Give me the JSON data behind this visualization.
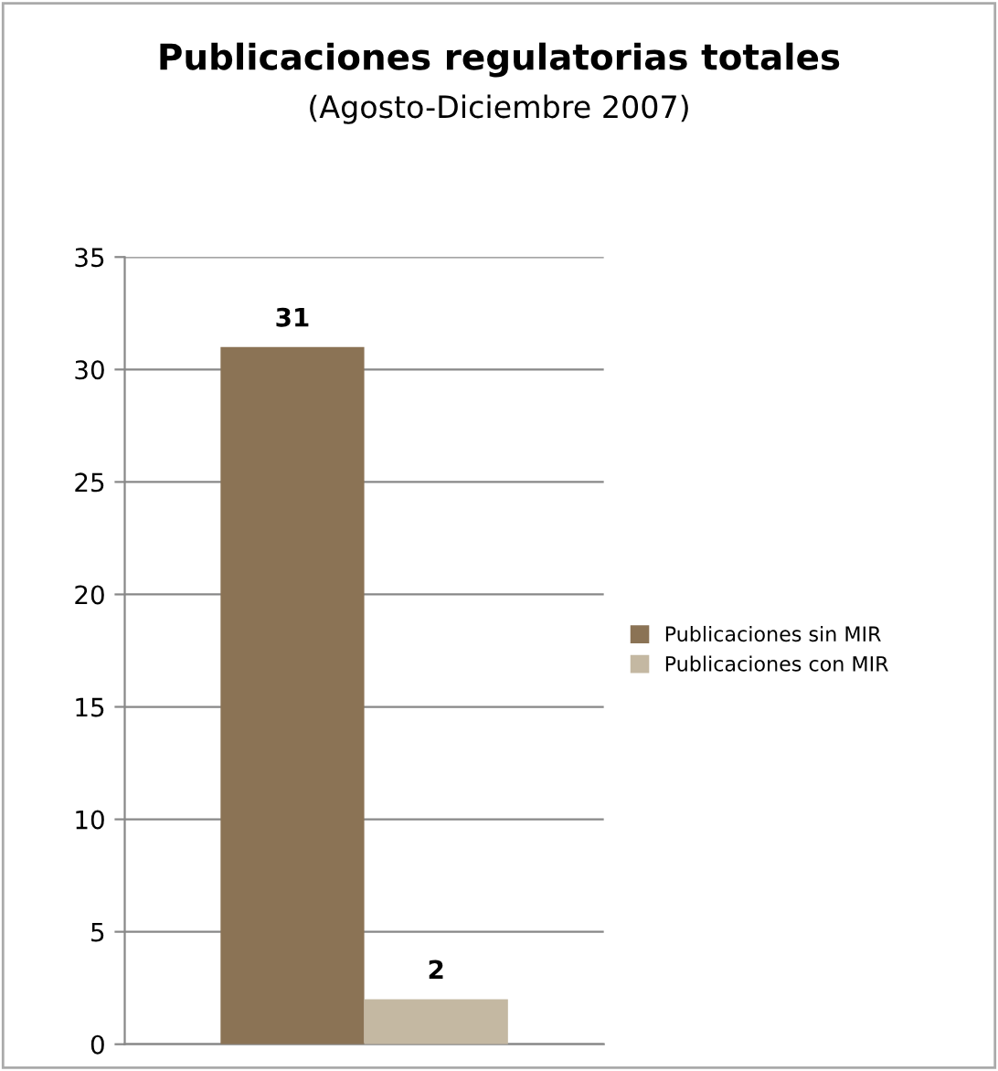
{
  "chart_data": {
    "type": "bar",
    "title": "Publicaciones regulatorias totales",
    "subtitle": "(Agosto-Diciembre 2007)",
    "categories": [
      null
    ],
    "series": [
      {
        "name": "Publicaciones sin MIR",
        "color": "#8b7355",
        "values": [
          31
        ]
      },
      {
        "name": "Publicaciones con MIR",
        "color": "#c4b8a2",
        "values": [
          2
        ]
      }
    ],
    "ylim": [
      0,
      35
    ],
    "yticks": [
      0,
      5,
      10,
      15,
      20,
      25,
      30,
      35
    ],
    "grid": "y",
    "legend": "right",
    "data_labels": true
  }
}
